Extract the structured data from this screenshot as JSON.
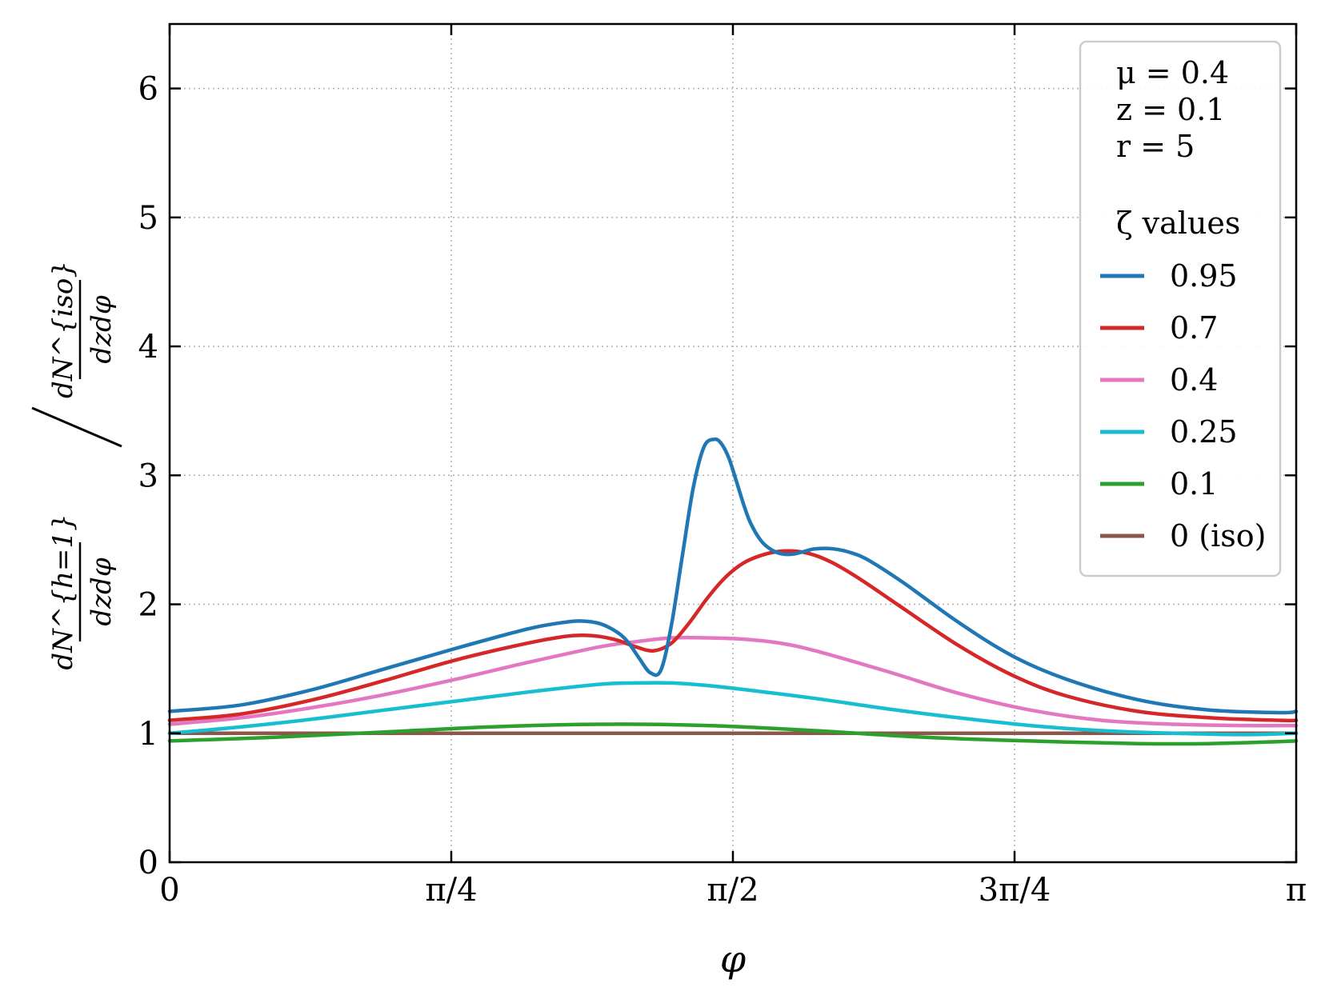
{
  "chart_data": {
    "type": "line",
    "xlabel": "φ",
    "ylabel": {
      "numerator": {
        "top": "dN^{h=1}",
        "bottom": "dzdφ"
      },
      "denominator": {
        "top": "dN^{iso}",
        "bottom": "dzdφ"
      }
    },
    "xlim": [
      0,
      3.14159
    ],
    "ylim": [
      0,
      6.5
    ],
    "grid": true,
    "x_ticks": [
      {
        "value": 0,
        "label": "0"
      },
      {
        "value": 0.785398,
        "label": "π/4"
      },
      {
        "value": 1.570796,
        "label": "π/2"
      },
      {
        "value": 2.356194,
        "label": "3π/4"
      },
      {
        "value": 3.141593,
        "label": "π"
      }
    ],
    "y_ticks": [
      {
        "value": 0,
        "label": "0"
      },
      {
        "value": 1,
        "label": "1"
      },
      {
        "value": 2,
        "label": "2"
      },
      {
        "value": 3,
        "label": "3"
      },
      {
        "value": 4,
        "label": "4"
      },
      {
        "value": 5,
        "label": "5"
      },
      {
        "value": 6,
        "label": "6"
      }
    ],
    "legend": {
      "placement": "top-right",
      "params": [
        "μ = 0.4",
        "z = 0.1",
        "r = 5"
      ],
      "title": "ζ values"
    },
    "series": [
      {
        "name": "0.95",
        "color": "#1f77b4",
        "x": [
          0,
          0.2,
          0.4,
          0.6,
          0.8,
          1.0,
          1.1,
          1.15,
          1.2,
          1.25,
          1.28,
          1.31,
          1.34,
          1.37,
          1.4,
          1.43,
          1.46,
          1.49,
          1.52,
          1.54,
          1.56,
          1.58,
          1.6,
          1.62,
          1.65,
          1.68,
          1.71,
          1.74,
          1.77,
          1.8,
          1.85,
          1.9,
          1.95,
          2.05,
          2.2,
          2.35,
          2.5,
          2.7,
          2.9,
          3.1,
          3.14159
        ],
        "y": [
          1.17,
          1.22,
          1.34,
          1.5,
          1.66,
          1.81,
          1.86,
          1.87,
          1.85,
          1.78,
          1.7,
          1.58,
          1.47,
          1.49,
          1.85,
          2.38,
          2.9,
          3.22,
          3.28,
          3.24,
          3.13,
          2.96,
          2.78,
          2.63,
          2.49,
          2.42,
          2.39,
          2.39,
          2.41,
          2.43,
          2.43,
          2.4,
          2.34,
          2.16,
          1.86,
          1.6,
          1.42,
          1.26,
          1.18,
          1.16,
          1.17
        ]
      },
      {
        "name": "0.7",
        "color": "#d62728",
        "x": [
          0,
          0.2,
          0.4,
          0.6,
          0.8,
          1.0,
          1.1,
          1.15,
          1.2,
          1.25,
          1.3,
          1.35,
          1.4,
          1.45,
          1.5,
          1.55,
          1.6,
          1.65,
          1.7,
          1.75,
          1.8,
          1.85,
          1.9,
          1.95,
          2.05,
          2.2,
          2.35,
          2.5,
          2.7,
          2.9,
          3.1,
          3.14159
        ],
        "y": [
          1.1,
          1.15,
          1.26,
          1.41,
          1.57,
          1.7,
          1.75,
          1.76,
          1.75,
          1.72,
          1.67,
          1.64,
          1.7,
          1.86,
          2.05,
          2.21,
          2.32,
          2.38,
          2.41,
          2.41,
          2.38,
          2.32,
          2.24,
          2.15,
          1.96,
          1.68,
          1.45,
          1.29,
          1.17,
          1.12,
          1.1,
          1.1
        ]
      },
      {
        "name": "0.4",
        "color": "#e377c2",
        "x": [
          0,
          0.2,
          0.4,
          0.6,
          0.8,
          1.0,
          1.2,
          1.3,
          1.4,
          1.5,
          1.6,
          1.7,
          1.8,
          2.0,
          2.2,
          2.4,
          2.6,
          2.8,
          3.0,
          3.14159
        ],
        "y": [
          1.07,
          1.12,
          1.2,
          1.3,
          1.42,
          1.55,
          1.67,
          1.71,
          1.74,
          1.74,
          1.73,
          1.7,
          1.64,
          1.48,
          1.31,
          1.18,
          1.1,
          1.07,
          1.06,
          1.06
        ]
      },
      {
        "name": "0.25",
        "color": "#17becf",
        "x": [
          0,
          0.2,
          0.4,
          0.6,
          0.8,
          1.0,
          1.2,
          1.3,
          1.4,
          1.5,
          1.6,
          1.8,
          2.0,
          2.2,
          2.4,
          2.6,
          2.8,
          3.0,
          3.14159
        ],
        "y": [
          1.0,
          1.05,
          1.11,
          1.18,
          1.25,
          1.32,
          1.38,
          1.39,
          1.39,
          1.37,
          1.34,
          1.27,
          1.19,
          1.12,
          1.06,
          1.02,
          1.0,
          0.99,
          1.0
        ]
      },
      {
        "name": "0.1",
        "color": "#2ca02c",
        "x": [
          0,
          0.3,
          0.6,
          0.9,
          1.2,
          1.5,
          1.8,
          2.1,
          2.4,
          2.7,
          2.9,
          3.14159
        ],
        "y": [
          0.94,
          0.97,
          1.01,
          1.05,
          1.07,
          1.06,
          1.02,
          0.97,
          0.94,
          0.92,
          0.92,
          0.94
        ]
      },
      {
        "name": "0 (iso)",
        "color": "#8c564b",
        "x": [
          0,
          3.14159
        ],
        "y": [
          1.0,
          1.0
        ]
      }
    ]
  }
}
